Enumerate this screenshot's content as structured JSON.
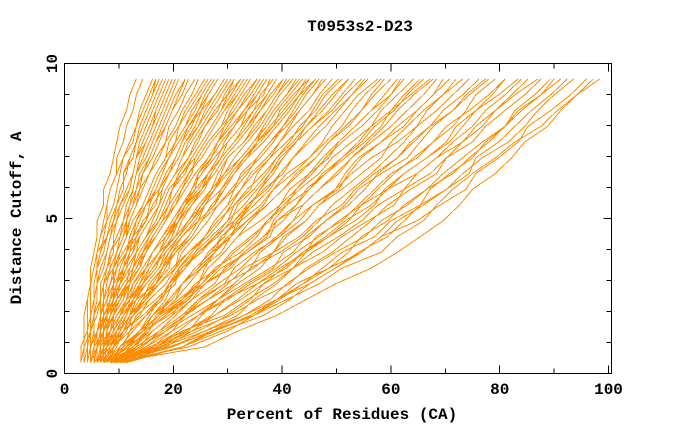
{
  "figure": {
    "background": "#ffffff"
  },
  "chart_data": {
    "type": "line",
    "title": "T0953s2-D23",
    "xlabel": "Percent of Residues (CA)",
    "ylabel": "Distance Cutoff, A",
    "xlim": [
      0,
      100
    ],
    "ylim": [
      0,
      10
    ],
    "x_major_ticks": [
      0,
      20,
      40,
      60,
      80,
      100
    ],
    "x_minor_ticks": [
      10,
      30,
      50,
      70,
      90
    ],
    "y_major_ticks": [
      0,
      5,
      10
    ],
    "y_minor_ticks": [
      1,
      2,
      3,
      4,
      6,
      7,
      8,
      9
    ],
    "grid": false,
    "legend": false,
    "curve_color": "#ff8c00",
    "axis_color": "#000000",
    "cutoffs_range": [
      0.35,
      9.5
    ],
    "points_per_curve": 19,
    "n_curves": 110,
    "jitter_seed": 1234,
    "curves_spec_note": "each curve = [percent of residues at lowest cutoff, percent at cutoff 9.5 A, shape exponent]",
    "curves": [
      [
        4.0,
        13.0,
        1.85
      ],
      [
        4.5,
        14.5,
        1.8
      ],
      [
        3.2,
        16.0,
        1.75
      ],
      [
        4.2,
        16.5,
        1.7
      ],
      [
        4.5,
        17.0,
        1.72
      ],
      [
        5.0,
        17.5,
        1.68
      ],
      [
        3.6,
        18.0,
        1.65
      ],
      [
        5.5,
        18.5,
        1.6
      ],
      [
        4.8,
        19.0,
        1.62
      ],
      [
        5.2,
        19.5,
        1.58
      ],
      [
        4.4,
        20.0,
        1.6
      ],
      [
        6.0,
        20.5,
        1.55
      ],
      [
        5.0,
        21.0,
        1.52
      ],
      [
        5.6,
        22.0,
        1.5
      ],
      [
        4.6,
        22.5,
        1.48
      ],
      [
        5.8,
        23.0,
        1.5
      ],
      [
        5.2,
        24.0,
        1.45
      ],
      [
        4.5,
        25.0,
        1.45
      ],
      [
        6.0,
        25.5,
        1.42
      ],
      [
        5.0,
        26.0,
        1.44
      ],
      [
        6.5,
        26.5,
        1.4
      ],
      [
        5.5,
        27.0,
        1.38
      ],
      [
        4.8,
        27.5,
        1.4
      ],
      [
        6.2,
        28.0,
        1.36
      ],
      [
        5.4,
        28.5,
        1.38
      ],
      [
        6.8,
        29.0,
        1.34
      ],
      [
        5.0,
        29.5,
        1.36
      ],
      [
        6.0,
        30.0,
        1.32
      ],
      [
        5.6,
        30.5,
        1.34
      ],
      [
        7.0,
        31.0,
        1.3
      ],
      [
        5.2,
        31.5,
        1.32
      ],
      [
        6.4,
        32.0,
        1.28
      ],
      [
        5.8,
        32.5,
        1.3
      ],
      [
        7.2,
        33.0,
        1.26
      ],
      [
        6.0,
        33.5,
        1.28
      ],
      [
        6.6,
        34.0,
        1.25
      ],
      [
        5.4,
        34.5,
        1.26
      ],
      [
        6.0,
        35.0,
        1.24
      ],
      [
        7.0,
        35.5,
        1.22
      ],
      [
        5.5,
        36.0,
        1.24
      ],
      [
        6.5,
        36.5,
        1.2
      ],
      [
        7.5,
        37.0,
        1.22
      ],
      [
        5.8,
        37.5,
        1.18
      ],
      [
        6.8,
        38.0,
        1.2
      ],
      [
        7.8,
        38.5,
        1.16
      ],
      [
        6.2,
        39.0,
        1.18
      ],
      [
        7.2,
        39.5,
        1.15
      ],
      [
        5.6,
        40.0,
        1.16
      ],
      [
        6.6,
        40.5,
        1.14
      ],
      [
        7.6,
        41.0,
        1.15
      ],
      [
        6.0,
        41.5,
        1.12
      ],
      [
        7.0,
        42.0,
        1.13
      ],
      [
        8.0,
        42.5,
        1.1
      ],
      [
        6.4,
        43.0,
        1.12
      ],
      [
        7.4,
        43.5,
        1.1
      ],
      [
        6.8,
        44.0,
        1.08
      ],
      [
        7.8,
        44.5,
        1.1
      ],
      [
        6.0,
        45.0,
        1.08
      ],
      [
        7.0,
        45.7,
        1.06
      ],
      [
        8.0,
        46.4,
        1.08
      ],
      [
        6.5,
        47.1,
        1.05
      ],
      [
        7.5,
        47.8,
        1.04
      ],
      [
        8.5,
        48.5,
        1.05
      ],
      [
        6.8,
        49.2,
        1.02
      ],
      [
        7.8,
        50.0,
        1.03
      ],
      [
        8.8,
        50.8,
        1.0
      ],
      [
        7.0,
        51.6,
        1.02
      ],
      [
        8.0,
        52.4,
        1.0
      ],
      [
        9.0,
        53.2,
        0.98
      ],
      [
        7.4,
        54.0,
        1.0
      ],
      [
        8.4,
        54.8,
        0.98
      ],
      [
        7.9,
        55.5,
        0.97
      ],
      [
        7.0,
        56.3,
        0.97
      ],
      [
        8.0,
        57.2,
        0.96
      ],
      [
        9.0,
        58.1,
        0.95
      ],
      [
        7.5,
        59.0,
        0.96
      ],
      [
        8.5,
        60.0,
        0.94
      ],
      [
        9.5,
        61.0,
        0.93
      ],
      [
        7.8,
        62.0,
        0.94
      ],
      [
        8.8,
        63.0,
        0.92
      ],
      [
        9.8,
        64.0,
        0.91
      ],
      [
        8.2,
        64.8,
        0.92
      ],
      [
        9.2,
        65.6,
        0.9
      ],
      [
        8.6,
        66.5,
        0.9
      ],
      [
        8.0,
        67.5,
        0.89
      ],
      [
        9.0,
        68.6,
        0.88
      ],
      [
        10.0,
        69.8,
        0.87
      ],
      [
        8.5,
        71.0,
        0.88
      ],
      [
        9.5,
        72.2,
        0.86
      ],
      [
        8.8,
        73.4,
        0.85
      ],
      [
        9.8,
        74.6,
        0.84
      ],
      [
        9.2,
        75.8,
        0.84
      ],
      [
        8.5,
        77.0,
        0.82
      ],
      [
        9.5,
        78.2,
        0.81
      ],
      [
        10.2,
        79.4,
        0.8
      ],
      [
        8.8,
        80.6,
        0.8
      ],
      [
        9.8,
        81.8,
        0.78
      ],
      [
        10.5,
        83.0,
        0.77
      ],
      [
        9.2,
        84.2,
        0.76
      ],
      [
        10.0,
        85.4,
        0.75
      ],
      [
        9.0,
        86.6,
        0.74
      ],
      [
        10.0,
        87.8,
        0.73
      ],
      [
        10.8,
        89.0,
        0.72
      ],
      [
        9.5,
        90.2,
        0.71
      ],
      [
        10.4,
        91.4,
        0.7
      ],
      [
        9.8,
        92.5,
        0.69
      ],
      [
        10.0,
        94.0,
        0.67
      ],
      [
        10.6,
        95.5,
        0.66
      ],
      [
        9.6,
        97.0,
        0.64
      ],
      [
        10.2,
        98.0,
        0.62
      ]
    ]
  }
}
